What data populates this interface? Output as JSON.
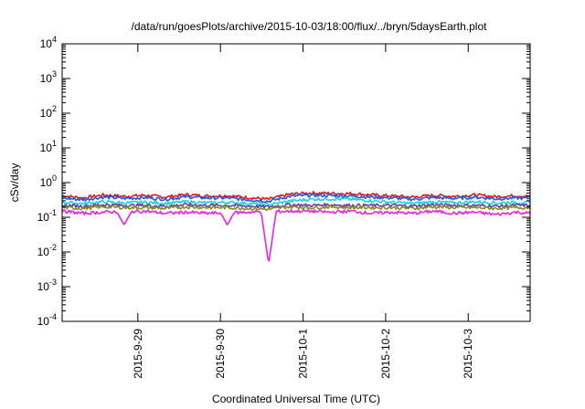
{
  "chart_data": {
    "type": "line",
    "title": "/data/run/goesPlots/archive/2015-10-03/18:00/flux/../bryn/5daysEarth.plot",
    "xlabel": "Coordinated Universal Time (UTC)",
    "ylabel": "cSv/day",
    "yscale": "log",
    "ylim": [
      0.0001,
      10000
    ],
    "y_ticks": [
      {
        "value": 0.0001,
        "base": "10",
        "exp": "-4"
      },
      {
        "value": 0.001,
        "base": "10",
        "exp": "-3"
      },
      {
        "value": 0.01,
        "base": "10",
        "exp": "-2"
      },
      {
        "value": 0.1,
        "base": "10",
        "exp": "-1"
      },
      {
        "value": 1,
        "base": "10",
        "exp": "0"
      },
      {
        "value": 10,
        "base": "10",
        "exp": "1"
      },
      {
        "value": 100,
        "base": "10",
        "exp": "2"
      },
      {
        "value": 1000,
        "base": "10",
        "exp": "3"
      },
      {
        "value": 10000,
        "base": "10",
        "exp": "4"
      }
    ],
    "xlim": [
      "2015-09-28T02:00",
      "2015-10-03T18:00"
    ],
    "x_ticks": [
      {
        "value": "2015-09-29T00:00",
        "label": "2015-9-29"
      },
      {
        "value": "2015-09-30T00:00",
        "label": "2015-9-30"
      },
      {
        "value": "2015-10-01T00:00",
        "label": "2015-10-1"
      },
      {
        "value": "2015-10-02T00:00",
        "label": "2015-10-2"
      },
      {
        "value": "2015-10-03T00:00",
        "label": "2015-10-3"
      }
    ],
    "grid": false,
    "legend": "none",
    "series": [
      {
        "color": "#e8141e",
        "level": 0.4,
        "values": [
          [
            "2015-09-28T02:00",
            0.42
          ],
          [
            "2015-09-28T08:00",
            0.36
          ],
          [
            "2015-09-28T14:00",
            0.44
          ],
          [
            "2015-09-28T20:00",
            0.4
          ],
          [
            "2015-09-29T02:00",
            0.43
          ],
          [
            "2015-09-29T08:00",
            0.38
          ],
          [
            "2015-09-29T14:00",
            0.45
          ],
          [
            "2015-09-29T20:00",
            0.41
          ],
          [
            "2015-09-30T02:00",
            0.42
          ],
          [
            "2015-09-30T08:00",
            0.37
          ],
          [
            "2015-09-30T14:00",
            0.33
          ],
          [
            "2015-09-30T20:00",
            0.46
          ],
          [
            "2015-10-01T02:00",
            0.5
          ],
          [
            "2015-10-01T08:00",
            0.49
          ],
          [
            "2015-10-01T14:00",
            0.48
          ],
          [
            "2015-10-01T20:00",
            0.44
          ],
          [
            "2015-10-02T02:00",
            0.41
          ],
          [
            "2015-10-02T08:00",
            0.38
          ],
          [
            "2015-10-02T14:00",
            0.43
          ],
          [
            "2015-10-02T20:00",
            0.4
          ],
          [
            "2015-10-03T02:00",
            0.44
          ],
          [
            "2015-10-03T08:00",
            0.39
          ],
          [
            "2015-10-03T14:00",
            0.42
          ],
          [
            "2015-10-03T18:00",
            0.4
          ]
        ]
      },
      {
        "color": "#1a5cf0",
        "level": 0.36,
        "values": [
          [
            "2015-09-28T02:00",
            0.36
          ],
          [
            "2015-09-28T08:00",
            0.32
          ],
          [
            "2015-09-28T14:00",
            0.38
          ],
          [
            "2015-09-28T20:00",
            0.35
          ],
          [
            "2015-09-29T02:00",
            0.37
          ],
          [
            "2015-09-29T08:00",
            0.33
          ],
          [
            "2015-09-29T14:00",
            0.39
          ],
          [
            "2015-09-29T20:00",
            0.36
          ],
          [
            "2015-09-30T02:00",
            0.36
          ],
          [
            "2015-09-30T08:00",
            0.32
          ],
          [
            "2015-09-30T14:00",
            0.29
          ],
          [
            "2015-09-30T20:00",
            0.4
          ],
          [
            "2015-10-01T02:00",
            0.43
          ],
          [
            "2015-10-01T08:00",
            0.42
          ],
          [
            "2015-10-01T14:00",
            0.41
          ],
          [
            "2015-10-01T20:00",
            0.38
          ],
          [
            "2015-10-02T02:00",
            0.36
          ],
          [
            "2015-10-02T08:00",
            0.33
          ],
          [
            "2015-10-02T14:00",
            0.37
          ],
          [
            "2015-10-02T20:00",
            0.35
          ],
          [
            "2015-10-03T02:00",
            0.38
          ],
          [
            "2015-10-03T08:00",
            0.34
          ],
          [
            "2015-10-03T14:00",
            0.36
          ],
          [
            "2015-10-03T18:00",
            0.35
          ]
        ]
      },
      {
        "color": "#19d3dc",
        "level": 0.27,
        "values": [
          [
            "2015-09-28T02:00",
            0.27
          ],
          [
            "2015-09-28T08:00",
            0.25
          ],
          [
            "2015-09-28T14:00",
            0.28
          ],
          [
            "2015-09-28T20:00",
            0.26
          ],
          [
            "2015-09-29T02:00",
            0.27
          ],
          [
            "2015-09-29T08:00",
            0.25
          ],
          [
            "2015-09-29T14:00",
            0.28
          ],
          [
            "2015-09-29T20:00",
            0.26
          ],
          [
            "2015-09-30T02:00",
            0.27
          ],
          [
            "2015-09-30T08:00",
            0.25
          ],
          [
            "2015-09-30T14:00",
            0.23
          ],
          [
            "2015-09-30T20:00",
            0.29
          ],
          [
            "2015-10-01T02:00",
            0.33
          ],
          [
            "2015-10-01T08:00",
            0.34
          ],
          [
            "2015-10-01T14:00",
            0.33
          ],
          [
            "2015-10-01T20:00",
            0.3
          ],
          [
            "2015-10-02T02:00",
            0.27
          ],
          [
            "2015-10-02T08:00",
            0.25
          ],
          [
            "2015-10-02T14:00",
            0.28
          ],
          [
            "2015-10-02T20:00",
            0.26
          ],
          [
            "2015-10-03T02:00",
            0.28
          ],
          [
            "2015-10-03T08:00",
            0.26
          ],
          [
            "2015-10-03T14:00",
            0.27
          ],
          [
            "2015-10-03T18:00",
            0.26
          ]
        ]
      },
      {
        "color": "#6b3fa0",
        "level": 0.22,
        "values": [
          [
            "2015-09-28T02:00",
            0.22
          ],
          [
            "2015-09-28T08:00",
            0.21
          ],
          [
            "2015-09-28T14:00",
            0.23
          ],
          [
            "2015-09-28T20:00",
            0.22
          ],
          [
            "2015-09-29T02:00",
            0.22
          ],
          [
            "2015-09-29T08:00",
            0.21
          ],
          [
            "2015-09-29T14:00",
            0.23
          ],
          [
            "2015-09-29T20:00",
            0.22
          ],
          [
            "2015-09-30T02:00",
            0.22
          ],
          [
            "2015-09-30T08:00",
            0.21
          ],
          [
            "2015-09-30T14:00",
            0.2
          ],
          [
            "2015-09-30T20:00",
            0.23
          ],
          [
            "2015-10-01T02:00",
            0.22
          ],
          [
            "2015-10-01T08:00",
            0.23
          ],
          [
            "2015-10-01T14:00",
            0.22
          ],
          [
            "2015-10-01T20:00",
            0.22
          ],
          [
            "2015-10-02T02:00",
            0.22
          ],
          [
            "2015-10-02T08:00",
            0.21
          ],
          [
            "2015-10-02T14:00",
            0.23
          ],
          [
            "2015-10-02T20:00",
            0.22
          ],
          [
            "2015-10-03T02:00",
            0.22
          ],
          [
            "2015-10-03T08:00",
            0.21
          ],
          [
            "2015-10-03T14:00",
            0.22
          ],
          [
            "2015-10-03T18:00",
            0.22
          ]
        ]
      },
      {
        "color": "#8a8a20",
        "level": 0.19,
        "values": [
          [
            "2015-09-28T02:00",
            0.19
          ],
          [
            "2015-09-28T08:00",
            0.18
          ],
          [
            "2015-09-28T14:00",
            0.2
          ],
          [
            "2015-09-28T20:00",
            0.19
          ],
          [
            "2015-09-29T02:00",
            0.19
          ],
          [
            "2015-09-29T08:00",
            0.18
          ],
          [
            "2015-09-29T14:00",
            0.2
          ],
          [
            "2015-09-29T20:00",
            0.19
          ],
          [
            "2015-09-30T02:00",
            0.19
          ],
          [
            "2015-09-30T08:00",
            0.18
          ],
          [
            "2015-09-30T14:00",
            0.17
          ],
          [
            "2015-09-30T20:00",
            0.2
          ],
          [
            "2015-10-01T02:00",
            0.19
          ],
          [
            "2015-10-01T08:00",
            0.2
          ],
          [
            "2015-10-01T14:00",
            0.19
          ],
          [
            "2015-10-01T20:00",
            0.19
          ],
          [
            "2015-10-02T02:00",
            0.19
          ],
          [
            "2015-10-02T08:00",
            0.18
          ],
          [
            "2015-10-02T14:00",
            0.2
          ],
          [
            "2015-10-02T20:00",
            0.19
          ],
          [
            "2015-10-03T02:00",
            0.19
          ],
          [
            "2015-10-03T08:00",
            0.18
          ],
          [
            "2015-10-03T14:00",
            0.19
          ],
          [
            "2015-10-03T18:00",
            0.19
          ]
        ]
      },
      {
        "color": "#ee22ee",
        "level": 0.15,
        "values": [
          [
            "2015-09-28T02:00",
            0.15
          ],
          [
            "2015-09-28T08:00",
            0.13
          ],
          [
            "2015-09-28T14:00",
            0.14
          ],
          [
            "2015-09-28T20:00",
            0.06
          ],
          [
            "2015-09-29T02:00",
            0.15
          ],
          [
            "2015-09-29T08:00",
            0.13
          ],
          [
            "2015-09-29T14:00",
            0.14
          ],
          [
            "2015-09-29T20:00",
            0.13
          ],
          [
            "2015-09-30T02:00",
            0.06
          ],
          [
            "2015-09-30T08:00",
            0.14
          ],
          [
            "2015-09-30T14:00",
            0.0045
          ],
          [
            "2015-09-30T20:00",
            0.15
          ],
          [
            "2015-10-01T02:00",
            0.15
          ],
          [
            "2015-10-01T08:00",
            0.14
          ],
          [
            "2015-10-01T14:00",
            0.15
          ],
          [
            "2015-10-01T20:00",
            0.13
          ],
          [
            "2015-10-02T02:00",
            0.14
          ],
          [
            "2015-10-02T08:00",
            0.13
          ],
          [
            "2015-10-02T14:00",
            0.15
          ],
          [
            "2015-10-02T20:00",
            0.13
          ],
          [
            "2015-10-03T02:00",
            0.14
          ],
          [
            "2015-10-03T08:00",
            0.12
          ],
          [
            "2015-10-03T14:00",
            0.14
          ],
          [
            "2015-10-03T18:00",
            0.13
          ]
        ]
      }
    ]
  }
}
